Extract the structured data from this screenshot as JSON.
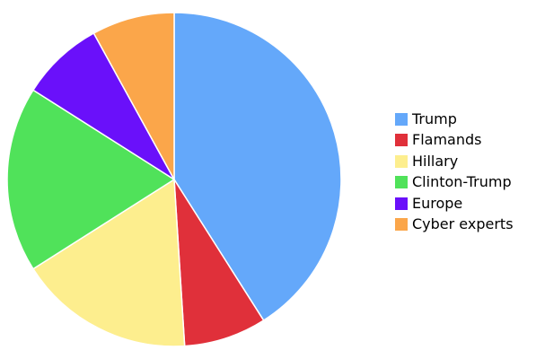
{
  "chart_data": {
    "type": "pie",
    "title": "",
    "start_angle_deg": 0,
    "direction": "clockwise",
    "slices": [
      {
        "label": "Trump",
        "value": 41,
        "color": "#64A8FA"
      },
      {
        "label": "Flamands",
        "value": 8,
        "color": "#E0303A"
      },
      {
        "label": "Hillary",
        "value": 17,
        "color": "#FDEE8E"
      },
      {
        "label": "Clinton-Trump",
        "value": 18,
        "color": "#50E25A"
      },
      {
        "label": "Europe",
        "value": 8,
        "color": "#6A10FA"
      },
      {
        "label": "Cyber experts",
        "value": 8,
        "color": "#FBA64A"
      }
    ],
    "legend": {
      "position": "right",
      "items": [
        "Trump",
        "Flamands",
        "Hillary",
        "Clinton-Trump",
        "Europe",
        "Cyber experts"
      ]
    }
  }
}
